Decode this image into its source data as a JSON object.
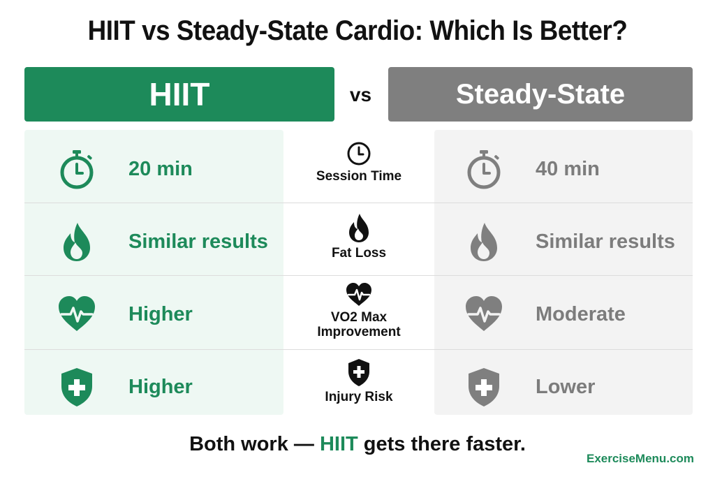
{
  "title": "HIIT vs Steady-State Cardio: Which Is Better?",
  "left_header": "HIIT",
  "vs_label": "vs",
  "right_header": "Steady-State",
  "rows": [
    {
      "metric": "Session Time",
      "metric_icon": "clock-icon",
      "hiit": "20 min",
      "steady": "40 min",
      "side_icon": "stopwatch-icon"
    },
    {
      "metric": "Fat Loss",
      "metric_icon": "flame-icon",
      "hiit": "Similar results",
      "steady": "Similar results",
      "side_icon": "flame-icon"
    },
    {
      "metric": "VO2 Max Improvement",
      "metric_lines": [
        "VO2 Max",
        "Improvement"
      ],
      "metric_icon": "heartbeat-icon",
      "hiit": "Higher",
      "steady": "Moderate",
      "side_icon": "heartbeat-icon"
    },
    {
      "metric": "Injury Risk",
      "metric_icon": "shield-plus-icon",
      "hiit": "Higher",
      "steady": "Lower",
      "side_icon": "shield-plus-icon"
    }
  ],
  "footer": {
    "prefix": "Both work — ",
    "highlight": "HIIT",
    "suffix": " gets there faster."
  },
  "brand": "ExerciseMenu.com",
  "colors": {
    "hiit_green": "#1d8a5a",
    "steady_gray": "#7f7f7f",
    "hiit_panel": "#eef8f3",
    "steady_panel": "#f3f3f3"
  }
}
